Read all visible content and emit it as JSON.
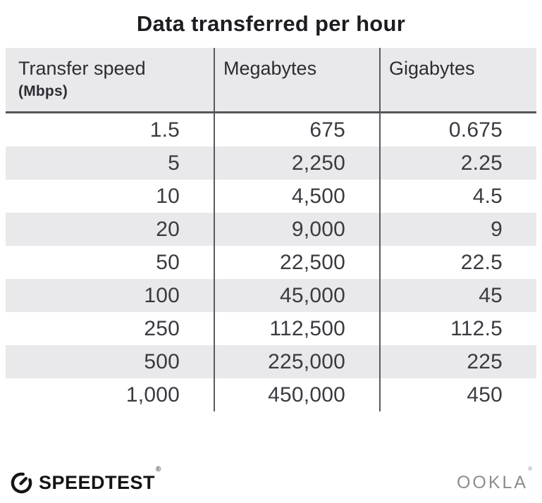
{
  "title": "Data transferred per hour",
  "table": {
    "columns": [
      {
        "label": "Transfer speed",
        "sublabel": "(Mbps)"
      },
      {
        "label": "Megabytes"
      },
      {
        "label": "Gigabytes"
      }
    ],
    "rows": [
      [
        "1.5",
        "675",
        "0.675"
      ],
      [
        "5",
        "2,250",
        "2.25"
      ],
      [
        "10",
        "4,500",
        "4.5"
      ],
      [
        "20",
        "9,000",
        "9"
      ],
      [
        "50",
        "22,500",
        "22.5"
      ],
      [
        "100",
        "45,000",
        "45"
      ],
      [
        "250",
        "112,500",
        "112.5"
      ],
      [
        "500",
        "225,000",
        "225"
      ],
      [
        "1,000",
        "450,000",
        "450"
      ]
    ]
  },
  "footer": {
    "brand": "SPEEDTEST",
    "brand_mark": "®",
    "brand_icon": "speedtest-gauge-icon",
    "company": "OOKLA",
    "company_mark": "®"
  },
  "colors": {
    "title_text": "#1e1c21",
    "header_bg": "#e9e8ea",
    "header_text": "#2e2c33",
    "header_underline": "#56545a",
    "divider": "#5b595f",
    "row_alt_bg": "#e9e8ea",
    "number_text": "#3c3a41",
    "brand_text": "#141414",
    "company_text": "#8d8c90"
  },
  "chart_data": {
    "type": "table",
    "title": "Data transferred per hour",
    "columns": [
      "Transfer speed (Mbps)",
      "Megabytes",
      "Gigabytes"
    ],
    "rows": [
      [
        1.5,
        675,
        0.675
      ],
      [
        5,
        2250,
        2.25
      ],
      [
        10,
        4500,
        4.5
      ],
      [
        20,
        9000,
        9
      ],
      [
        50,
        22500,
        22.5
      ],
      [
        100,
        45000,
        45
      ],
      [
        250,
        112500,
        112.5
      ],
      [
        500,
        225000,
        225
      ],
      [
        1000,
        450000,
        450
      ]
    ]
  }
}
